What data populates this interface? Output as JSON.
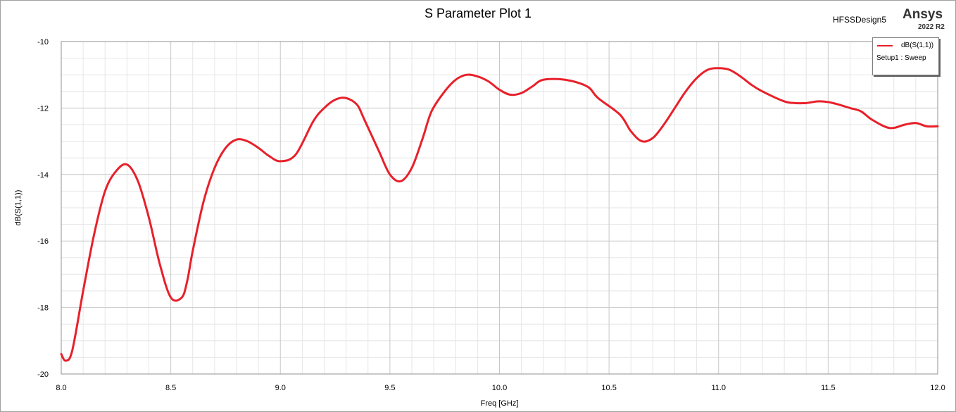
{
  "header": {
    "design_name": "HFSSDesign5",
    "brand": "Ansys",
    "version": "2022 R2"
  },
  "legend": {
    "series_label": "dB(S(1,1))",
    "solution_label": "Setup1 : Sweep"
  },
  "chart_data": {
    "type": "line",
    "title": "S Parameter Plot 1",
    "xlabel": "Freq [GHz]",
    "ylabel": "dB(S(1,1))",
    "xlim": [
      8.0,
      12.0
    ],
    "ylim": [
      -20,
      -10
    ],
    "x_ticks": [
      "8.0",
      "8.5",
      "9.0",
      "9.5",
      "10.0",
      "10.5",
      "11.0",
      "11.5",
      "12.0"
    ],
    "y_ticks": [
      "-10",
      "-12",
      "-14",
      "-16",
      "-18",
      "-20"
    ],
    "grid": true,
    "legend_position": "top-right",
    "series": [
      {
        "name": "dB(S(1,1))",
        "color": "#e8202a",
        "x": [
          8.0,
          8.02,
          8.05,
          8.1,
          8.15,
          8.2,
          8.25,
          8.3,
          8.35,
          8.4,
          8.45,
          8.5,
          8.55,
          8.575,
          8.6,
          8.65,
          8.7,
          8.75,
          8.8,
          8.85,
          8.9,
          8.95,
          9.0,
          9.07,
          9.15,
          9.2,
          9.25,
          9.3,
          9.35,
          9.38,
          9.45,
          9.5,
          9.55,
          9.6,
          9.65,
          9.69,
          9.75,
          9.8,
          9.85,
          9.9,
          9.95,
          10.0,
          10.05,
          10.1,
          10.15,
          10.2,
          10.3,
          10.4,
          10.45,
          10.55,
          10.6,
          10.65,
          10.7,
          10.75,
          10.8,
          10.85,
          10.9,
          10.95,
          11.0,
          11.05,
          11.1,
          11.15,
          11.2,
          11.3,
          11.35,
          11.4,
          11.45,
          11.5,
          11.55,
          11.6,
          11.65,
          11.7,
          11.78,
          11.85,
          11.9,
          11.95,
          12.0
        ],
        "y": [
          -19.4,
          -19.6,
          -19.3,
          -17.5,
          -15.8,
          -14.5,
          -13.9,
          -13.7,
          -14.2,
          -15.3,
          -16.7,
          -17.7,
          -17.7,
          -17.2,
          -16.3,
          -14.8,
          -13.8,
          -13.2,
          -12.95,
          -13.0,
          -13.2,
          -13.45,
          -13.6,
          -13.4,
          -12.4,
          -12.0,
          -11.75,
          -11.7,
          -11.9,
          -12.3,
          -13.3,
          -14.0,
          -14.2,
          -13.8,
          -12.9,
          -12.1,
          -11.5,
          -11.15,
          -11.0,
          -11.05,
          -11.2,
          -11.45,
          -11.6,
          -11.55,
          -11.35,
          -11.15,
          -11.15,
          -11.35,
          -11.7,
          -12.2,
          -12.7,
          -13.0,
          -12.9,
          -12.5,
          -12.0,
          -11.5,
          -11.1,
          -10.85,
          -10.8,
          -10.85,
          -11.05,
          -11.3,
          -11.5,
          -11.8,
          -11.85,
          -11.85,
          -11.8,
          -11.82,
          -11.9,
          -12.0,
          -12.1,
          -12.35,
          -12.6,
          -12.5,
          -12.45,
          -12.55,
          -12.55
        ]
      }
    ]
  }
}
